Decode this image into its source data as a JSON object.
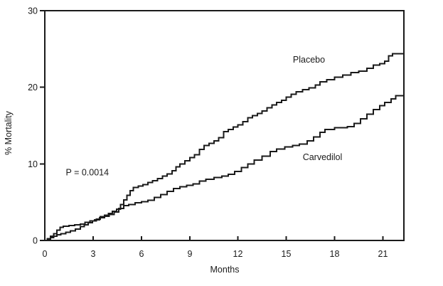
{
  "chart_data": {
    "type": "line",
    "subtype": "kaplan-meier-step",
    "title": "",
    "xlabel": "Months",
    "ylabel": "% Mortality",
    "xlim": [
      0,
      22.3
    ],
    "ylim": [
      0,
      30
    ],
    "x_ticks": [
      0,
      3,
      6,
      9,
      12,
      15,
      18,
      21
    ],
    "y_ticks": [
      0,
      10,
      20,
      30
    ],
    "grid": false,
    "legend": "inline-labels",
    "line_color": "#1a1a1a",
    "background": "#ffffff",
    "annotations": [
      {
        "text": "Placebo",
        "x": 16.4,
        "y": 23.6,
        "anchor": "middle"
      },
      {
        "text": "Carvedilol",
        "x": 17.25,
        "y": 10.85,
        "anchor": "middle"
      },
      {
        "text": "P = 0.0014",
        "x": 1.3,
        "y": 8.85,
        "anchor": "start"
      }
    ],
    "series": [
      {
        "name": "Placebo",
        "points": [
          [
            0,
            0
          ],
          [
            0.15,
            0.15
          ],
          [
            0.35,
            0.35
          ],
          [
            0.55,
            0.55
          ],
          [
            0.75,
            0.75
          ],
          [
            1.0,
            0.9
          ],
          [
            1.3,
            1.05
          ],
          [
            1.6,
            1.25
          ],
          [
            1.9,
            1.5
          ],
          [
            2.2,
            1.8
          ],
          [
            2.45,
            2.05
          ],
          [
            2.7,
            2.3
          ],
          [
            2.95,
            2.55
          ],
          [
            3.2,
            2.8
          ],
          [
            3.45,
            3.1
          ],
          [
            3.7,
            3.3
          ],
          [
            3.95,
            3.55
          ],
          [
            4.2,
            3.8
          ],
          [
            4.45,
            4.1
          ],
          [
            4.7,
            4.7
          ],
          [
            4.9,
            5.3
          ],
          [
            5.1,
            5.9
          ],
          [
            5.3,
            6.5
          ],
          [
            5.5,
            6.9
          ],
          [
            5.8,
            7.1
          ],
          [
            6.1,
            7.3
          ],
          [
            6.4,
            7.55
          ],
          [
            6.7,
            7.8
          ],
          [
            7.0,
            8.1
          ],
          [
            7.3,
            8.4
          ],
          [
            7.6,
            8.7
          ],
          [
            7.9,
            9.1
          ],
          [
            8.15,
            9.6
          ],
          [
            8.4,
            10.0
          ],
          [
            8.7,
            10.4
          ],
          [
            9.0,
            10.8
          ],
          [
            9.3,
            11.2
          ],
          [
            9.6,
            11.9
          ],
          [
            9.9,
            12.4
          ],
          [
            10.2,
            12.7
          ],
          [
            10.5,
            13.0
          ],
          [
            10.8,
            13.4
          ],
          [
            11.1,
            14.2
          ],
          [
            11.4,
            14.5
          ],
          [
            11.7,
            14.8
          ],
          [
            12.0,
            15.1
          ],
          [
            12.3,
            15.5
          ],
          [
            12.6,
            16.0
          ],
          [
            12.9,
            16.3
          ],
          [
            13.2,
            16.6
          ],
          [
            13.5,
            16.9
          ],
          [
            13.8,
            17.3
          ],
          [
            14.1,
            17.7
          ],
          [
            14.4,
            18.0
          ],
          [
            14.7,
            18.3
          ],
          [
            15.0,
            18.7
          ],
          [
            15.3,
            19.1
          ],
          [
            15.6,
            19.4
          ],
          [
            16.0,
            19.7
          ],
          [
            16.4,
            19.9
          ],
          [
            16.8,
            20.3
          ],
          [
            17.1,
            20.7
          ],
          [
            17.5,
            21.0
          ],
          [
            18.0,
            21.3
          ],
          [
            18.5,
            21.6
          ],
          [
            19.0,
            21.9
          ],
          [
            19.5,
            22.1
          ],
          [
            20.0,
            22.5
          ],
          [
            20.4,
            22.9
          ],
          [
            20.8,
            23.1
          ],
          [
            21.1,
            23.4
          ],
          [
            21.35,
            24.1
          ],
          [
            21.6,
            24.4
          ],
          [
            22.3,
            24.5
          ]
        ]
      },
      {
        "name": "Carvedilol",
        "points": [
          [
            0,
            0
          ],
          [
            0.15,
            0.25
          ],
          [
            0.35,
            0.55
          ],
          [
            0.55,
            0.9
          ],
          [
            0.75,
            1.35
          ],
          [
            0.95,
            1.7
          ],
          [
            1.15,
            1.85
          ],
          [
            1.5,
            1.95
          ],
          [
            1.85,
            2.05
          ],
          [
            2.2,
            2.15
          ],
          [
            2.5,
            2.35
          ],
          [
            2.8,
            2.55
          ],
          [
            3.1,
            2.7
          ],
          [
            3.4,
            2.95
          ],
          [
            3.7,
            3.15
          ],
          [
            4.0,
            3.4
          ],
          [
            4.3,
            3.7
          ],
          [
            4.6,
            4.2
          ],
          [
            4.9,
            4.55
          ],
          [
            5.2,
            4.7
          ],
          [
            5.6,
            4.9
          ],
          [
            6.0,
            5.05
          ],
          [
            6.4,
            5.25
          ],
          [
            6.8,
            5.6
          ],
          [
            7.2,
            6.0
          ],
          [
            7.6,
            6.4
          ],
          [
            8.0,
            6.8
          ],
          [
            8.4,
            7.0
          ],
          [
            8.8,
            7.2
          ],
          [
            9.2,
            7.4
          ],
          [
            9.6,
            7.75
          ],
          [
            10.0,
            8.0
          ],
          [
            10.5,
            8.2
          ],
          [
            11.0,
            8.4
          ],
          [
            11.4,
            8.65
          ],
          [
            11.8,
            9.0
          ],
          [
            12.2,
            9.5
          ],
          [
            12.6,
            10.0
          ],
          [
            13.0,
            10.5
          ],
          [
            13.5,
            11.0
          ],
          [
            14.0,
            11.6
          ],
          [
            14.4,
            11.95
          ],
          [
            14.9,
            12.2
          ],
          [
            15.4,
            12.4
          ],
          [
            15.8,
            12.6
          ],
          [
            16.3,
            13.0
          ],
          [
            16.7,
            13.5
          ],
          [
            17.1,
            14.1
          ],
          [
            17.4,
            14.5
          ],
          [
            18.0,
            14.7
          ],
          [
            18.8,
            14.85
          ],
          [
            19.2,
            15.3
          ],
          [
            19.6,
            15.9
          ],
          [
            20.0,
            16.5
          ],
          [
            20.4,
            17.1
          ],
          [
            20.8,
            17.6
          ],
          [
            21.1,
            18.0
          ],
          [
            21.5,
            18.5
          ],
          [
            21.8,
            18.9
          ],
          [
            22.3,
            19.05
          ]
        ]
      }
    ]
  }
}
